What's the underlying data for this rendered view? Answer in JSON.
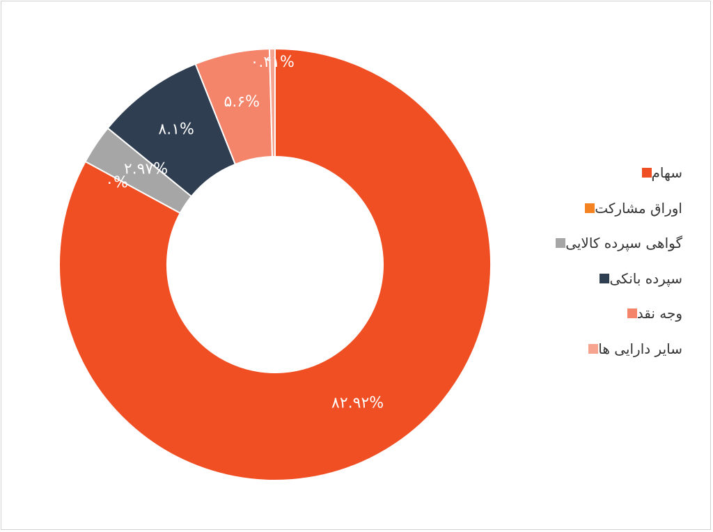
{
  "chart_data": {
    "type": "pie",
    "donut": true,
    "legend_position": "right",
    "slices": [
      {
        "label": "سهام",
        "value": 82.92,
        "display": "۸۲.۹۲%",
        "color": "#f04e23"
      },
      {
        "label": "اوراق مشارکت",
        "value": 0,
        "display": "۰%",
        "color": "#f58220"
      },
      {
        "label": "گواهی سپرده کالایی",
        "value": 2.97,
        "display": "۲.۹۷%",
        "color": "#a6a6a6"
      },
      {
        "label": "سپرده بانکی",
        "value": 8.1,
        "display": "۸.۱%",
        "color": "#2f3e51"
      },
      {
        "label": "وجه نقد",
        "value": 5.6,
        "display": "۵.۶%",
        "color": "#f4846a"
      },
      {
        "label": "سایر دارایی ها",
        "value": 0.41,
        "display": "۰.۴۱%",
        "color": "#f6a390"
      }
    ]
  }
}
